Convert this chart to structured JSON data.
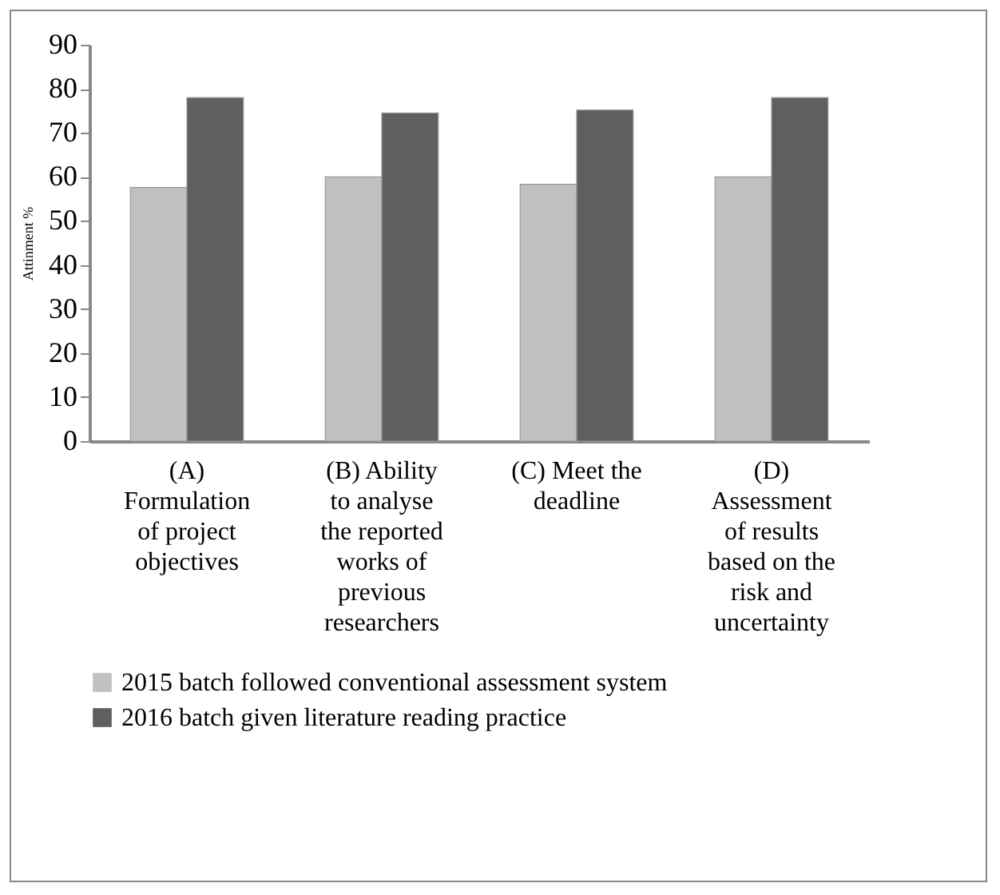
{
  "chart_data": {
    "type": "bar",
    "ylabel": "Attinment %",
    "categories": [
      "(A) Formulation of project objectives",
      "(B) Ability to analyse the reported works of previous researchers",
      "(C) Meet the deadline",
      "(D) Assessment of results based on the risk and uncertainty"
    ],
    "series": [
      {
        "name": "2015 batch followed conventional assessment system",
        "color": "#c0c0c0",
        "values": [
          57.6,
          60.0,
          58.3,
          60.0
        ]
      },
      {
        "name": "2016 batch given literature reading practice",
        "color": "#5f5f5f",
        "values": [
          78.0,
          74.5,
          75.2,
          78.0
        ]
      }
    ],
    "ylim": [
      0,
      90
    ],
    "yticks": [
      0,
      10,
      20,
      30,
      40,
      50,
      60,
      70,
      80,
      90
    ],
    "grid": false,
    "legend": "bottom"
  }
}
